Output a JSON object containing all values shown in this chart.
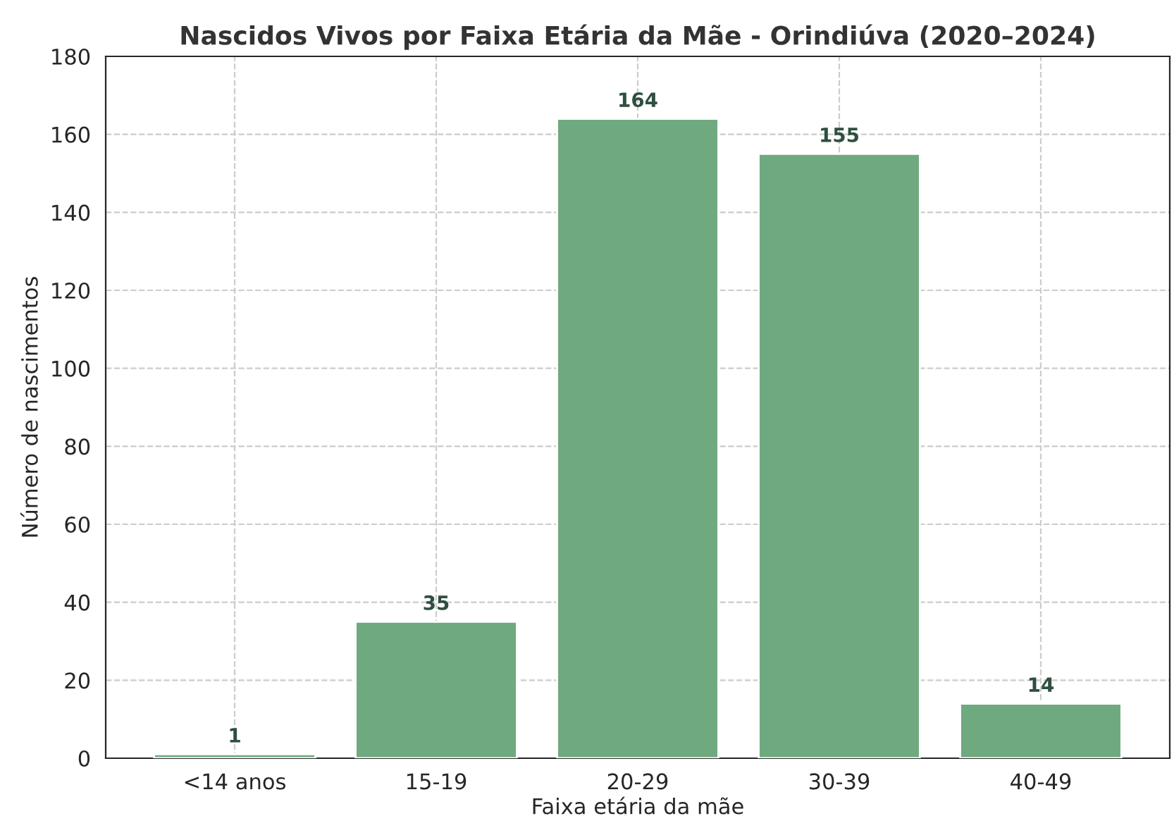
{
  "chart_data": {
    "type": "bar",
    "title": "Nascidos Vivos por Faixa Etária da Mãe - Orindiúva (2020–2024)",
    "xlabel": "Faixa etária da mãe",
    "ylabel": "Número de nascimentos",
    "categories": [
      "<14 anos",
      "15-19",
      "20-29",
      "30-39",
      "40-49"
    ],
    "values": [
      1,
      35,
      164,
      155,
      14
    ],
    "color": "#6fa97f",
    "ylim": [
      0,
      180
    ],
    "yticks": [
      0,
      20,
      40,
      60,
      80,
      100,
      120,
      140,
      160,
      180
    ],
    "grid": true,
    "data_labels": true
  }
}
